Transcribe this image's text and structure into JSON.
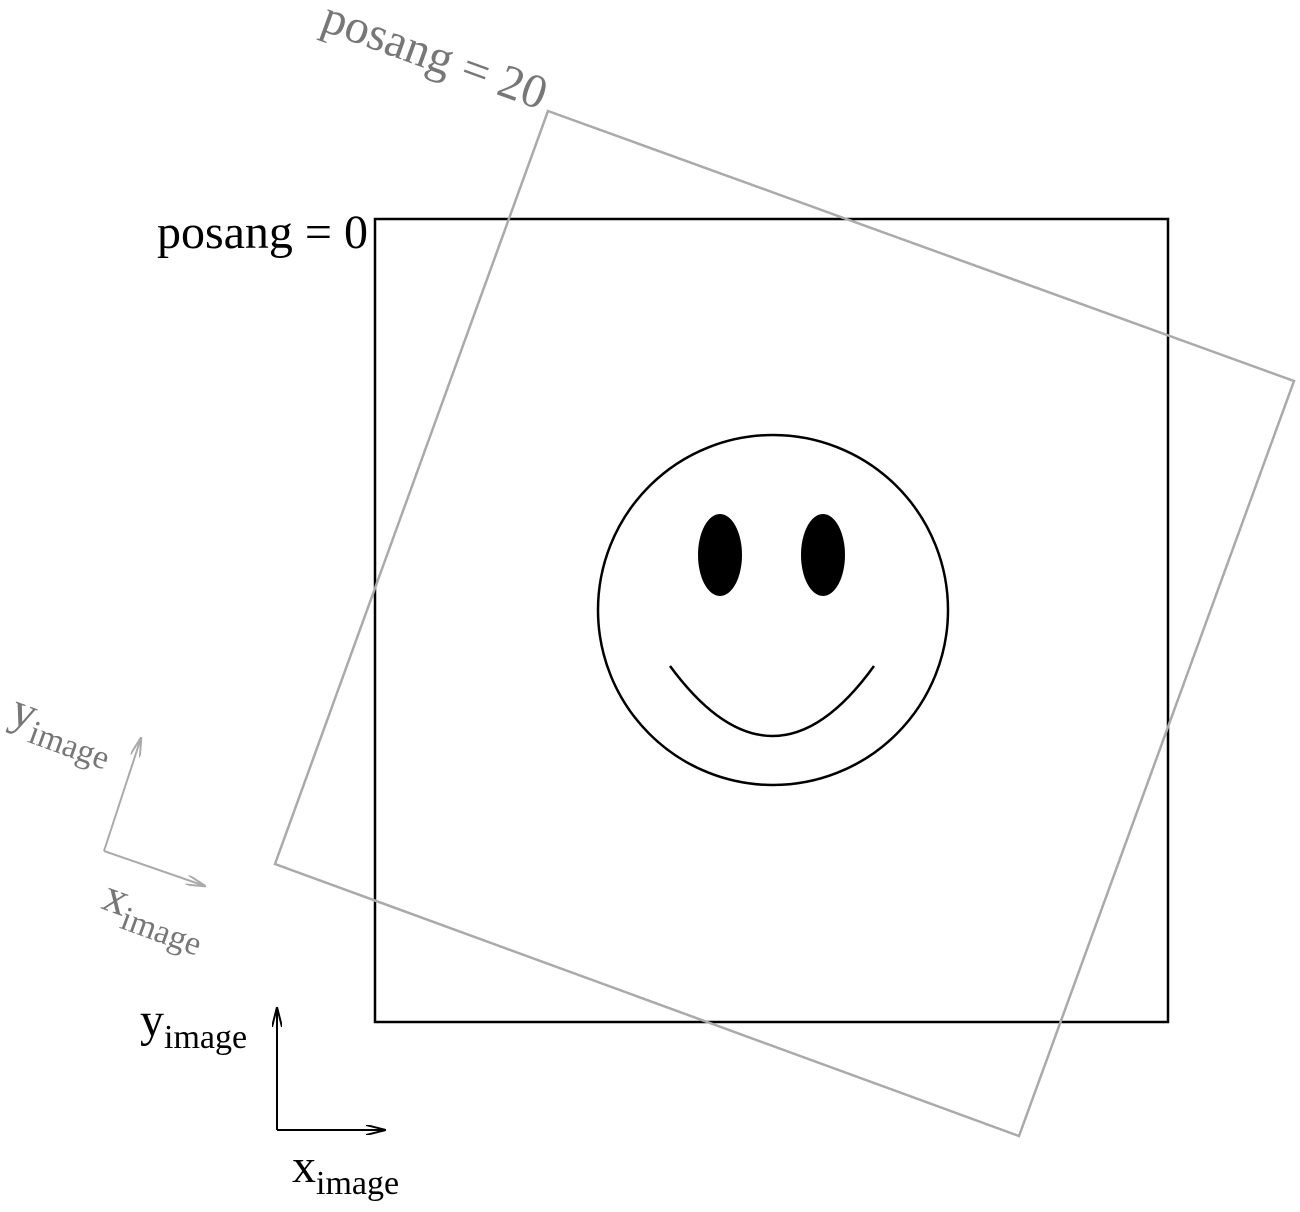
{
  "frame_rotated": {
    "label": "posang = 20",
    "angle_deg": 20,
    "color": "#aaaaaa",
    "text_color": "#777777"
  },
  "frame_upright": {
    "label": "posang = 0",
    "angle_deg": 0,
    "color": "#000000"
  },
  "axes_rotated": {
    "y_base": "y",
    "y_sub": "image",
    "x_base": "x",
    "x_sub": "image"
  },
  "axes_upright": {
    "y_base": "y",
    "y_sub": "image",
    "x_base": "x",
    "x_sub": "image"
  },
  "smiley": {
    "face_icon": "smiley-face-icon",
    "color": "#000000"
  }
}
